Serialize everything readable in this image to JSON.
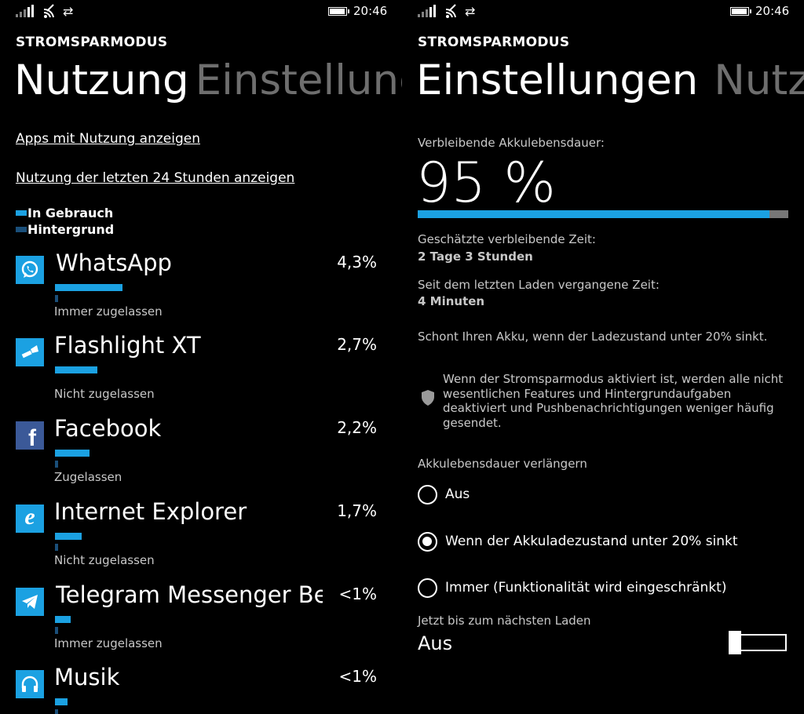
{
  "left": {
    "status": {
      "time": "20:46"
    },
    "kicker": "STROMSPARMODUS",
    "pivot": {
      "active": "Nutzung",
      "inactive": "Einstellungen"
    },
    "links": {
      "apps_with_usage": "Apps mit Nutzung anzeigen",
      "last_24h": "Nutzung der letzten 24 Stunden anzeigen"
    },
    "legend": {
      "in_use": "In Gebrauch",
      "background": "Hintergrund",
      "in_use_color": "#1ba1e2",
      "background_color": "#1a4f7a"
    },
    "apps": [
      {
        "name": "WhatsApp",
        "percent": "4,3%",
        "status": "Immer zugelassen",
        "usage": 0.43,
        "icon": "whatsapp-icon"
      },
      {
        "name": "Flashlight XT",
        "percent": "2,7%",
        "status": "Nicht zugelassen",
        "usage": 0.27,
        "icon": "flashlight-icon"
      },
      {
        "name": "Facebook",
        "percent": "2,2%",
        "status": "Zugelassen",
        "usage": 0.22,
        "icon": "facebook-icon"
      },
      {
        "name": "Internet Explorer",
        "percent": "1,7%",
        "status": "Nicht zugelassen",
        "usage": 0.17,
        "icon": "internet-explorer-icon"
      },
      {
        "name": "Telegram Messenger Beta",
        "percent": "<1%",
        "status": "Immer zugelassen",
        "usage": 0.1,
        "icon": "telegram-icon"
      },
      {
        "name": "Musik",
        "percent": "<1%",
        "status": "",
        "usage": 0.08,
        "icon": "headphones-icon"
      }
    ]
  },
  "right": {
    "status": {
      "time": "20:46"
    },
    "kicker": "STROMSPARMODUS",
    "pivot": {
      "active": "Einstellungen",
      "inactive": "Nutzung"
    },
    "remaining_label": "Verbleibende Akkulebensdauer:",
    "remaining_value": "95 %",
    "battery_fraction": 0.95,
    "estimated_label": "Geschätzte verbleibende Zeit:",
    "estimated_value": "2 Tage 3 Stunden",
    "since_label": "Seit dem letzten Laden vergangene Zeit:",
    "since_value": "4 Minuten",
    "saves_text": "Schont Ihren Akku, wenn der Ladezustand unter 20% sinkt.",
    "info_text": "Wenn der Stromsparmodus aktiviert ist, werden alle nicht wesentlichen Features und Hintergrundaufgaben deaktiviert und Pushbenachrichtigungen weniger häufig gesendet.",
    "extend_label": "Akkulebensdauer verlängern",
    "options": [
      {
        "label": "Aus",
        "selected": false
      },
      {
        "label": "Wenn der Akkuladezustand unter 20% sinkt",
        "selected": true
      },
      {
        "label": "Immer (Funktionalität wird eingeschränkt)",
        "selected": false
      }
    ],
    "until_label": "Jetzt bis zum nächsten Laden",
    "until_value": "Aus",
    "accent": "#1ba1e2"
  }
}
